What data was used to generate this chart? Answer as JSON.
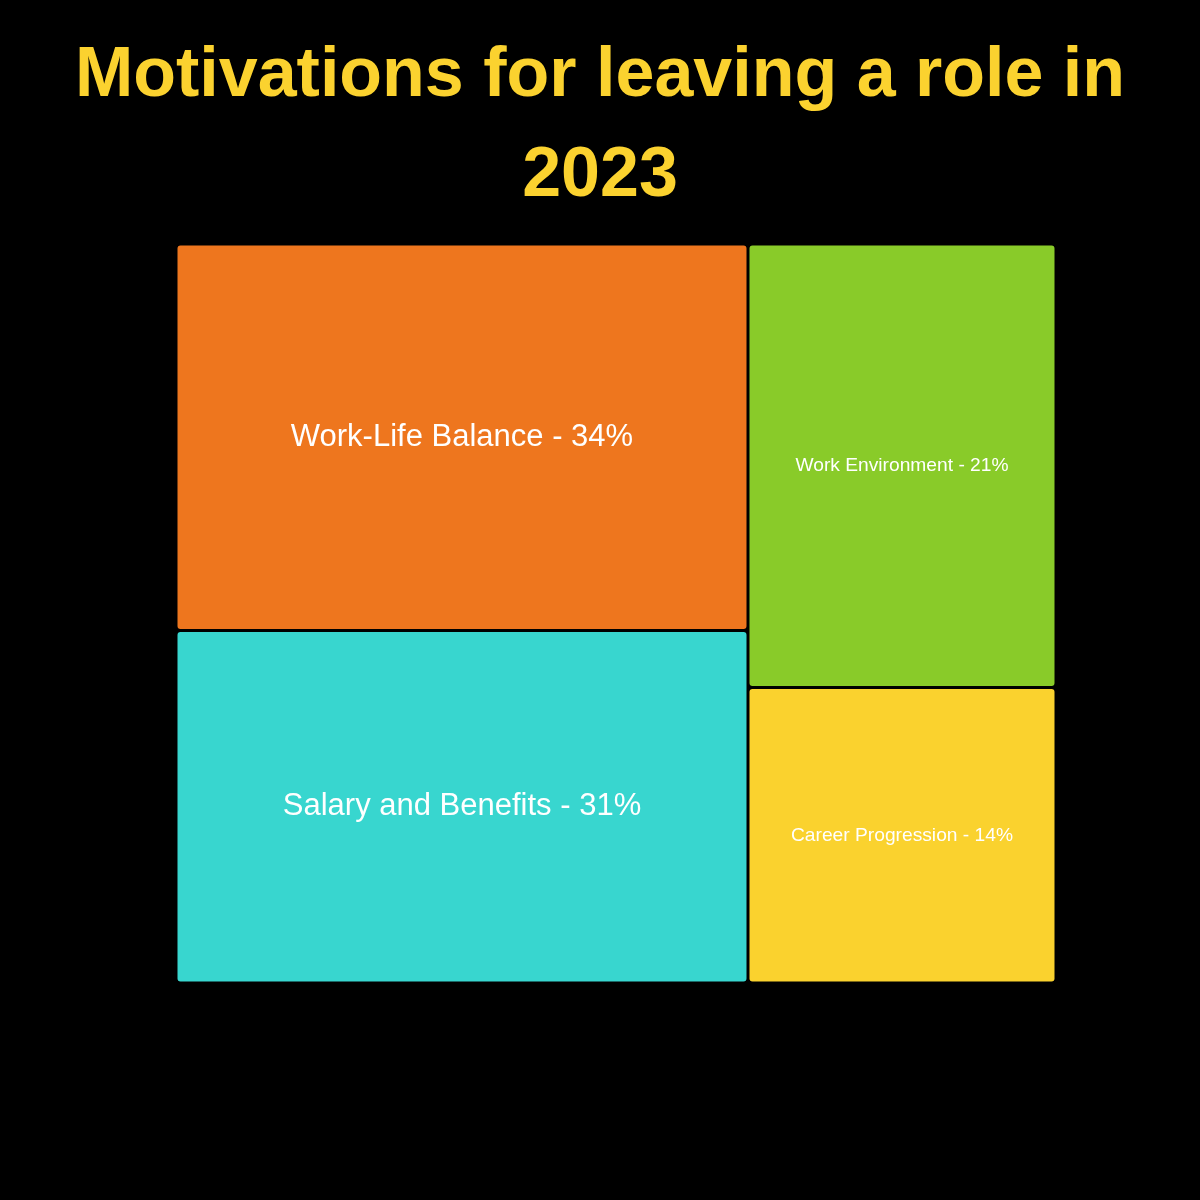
{
  "chart_data": {
    "type": "other",
    "title": "Motivations for leaving a role in 2023",
    "categories": [
      "Work-Life Balance -",
      "Salary and Benefits -",
      "Work Environment -",
      "Career Progression -"
    ],
    "values": [
      34,
      31,
      21,
      14
    ],
    "value_labels": [
      "34%",
      "31%",
      "21%",
      "14%"
    ],
    "colors": [
      "#ee761e",
      "#38d6cf",
      "#89cb29",
      "#fad22e"
    ]
  }
}
